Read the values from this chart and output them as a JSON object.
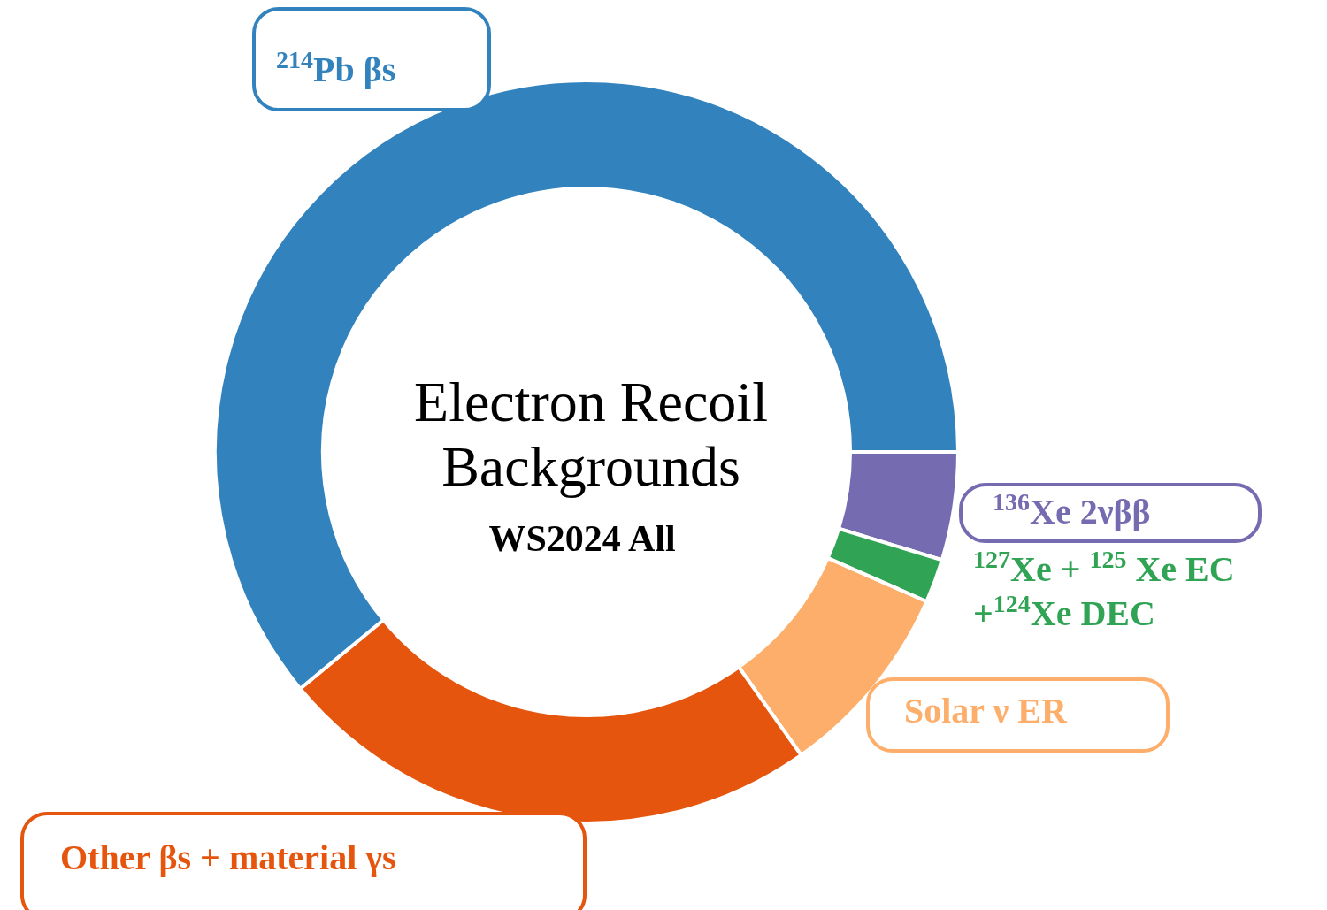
{
  "chart_data": {
    "type": "donut",
    "title": "Electron Recoil Backgrounds",
    "subtitle": "WS2024 All",
    "categories": [
      "$^{136}$Xe 2νββ",
      "$^{127}$Xe + $^{125}$ Xe EC\n+$^{124}$Xe DEC",
      "Solar ν ER",
      "Other βs + material γs",
      "$^{214}$Pb βs"
    ],
    "values": [
      4.7,
      1.9,
      8.6,
      23.8,
      61.0
    ],
    "colors": [
      "#756bb1",
      "#31a354",
      "#fdae6b",
      "#e6550d",
      "#3182bd"
    ],
    "legend": false
  }
}
